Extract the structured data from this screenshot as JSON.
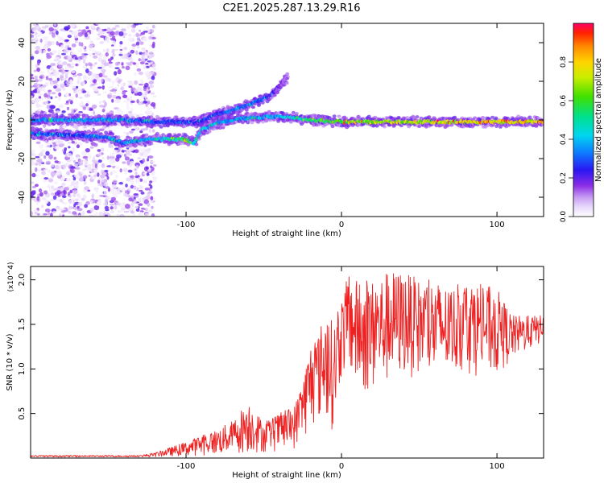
{
  "title": "C2E1.2025.287.13.29.R16",
  "chart_data": [
    {
      "type": "heatmap",
      "xlabel": "Height of straight line (km)",
      "ylabel": "Frequency (Hz)",
      "xlim": [
        -200,
        130
      ],
      "ylim": [
        -50,
        50
      ],
      "xticks": [
        -100,
        0,
        100
      ],
      "yticks": [
        -40,
        -20,
        0,
        20,
        40
      ],
      "colorbar": {
        "label": "Normalized spectral amplitude",
        "range": [
          0,
          1
        ],
        "ticks": [
          "0.0",
          "0.2",
          "0.4",
          "0.6",
          "0.8"
        ],
        "tick_values": [
          0.0,
          0.2,
          0.4,
          0.6,
          0.8
        ]
      },
      "noise_region": {
        "x_from": -200,
        "x_to": -120,
        "freq_from": -50,
        "freq_to": 50
      },
      "tracks": [
        {
          "name": "main echo trace",
          "points": [
            [
              -200,
              0
            ],
            [
              -180,
              0
            ],
            [
              -160,
              0
            ],
            [
              -140,
              0
            ],
            [
              -120,
              -1
            ],
            [
              -100,
              -1
            ],
            [
              -80,
              0
            ],
            [
              -60,
              1
            ],
            [
              -40,
              2
            ],
            [
              -20,
              0
            ],
            [
              0,
              -1
            ],
            [
              20,
              -1
            ],
            [
              40,
              -1
            ],
            [
              60,
              -1
            ],
            [
              80,
              -1
            ],
            [
              100,
              -1
            ],
            [
              130,
              -1
            ]
          ],
          "amplitude": [
            0.35,
            0.4,
            0.4,
            0.35,
            0.3,
            0.3,
            0.35,
            0.4,
            0.4,
            0.6,
            0.7,
            0.75,
            0.8,
            0.8,
            0.85,
            0.85,
            0.85
          ]
        },
        {
          "name": "lower branch",
          "points": [
            [
              -200,
              -7
            ],
            [
              -170,
              -8
            ],
            [
              -150,
              -9
            ],
            [
              -140,
              -12
            ],
            [
              -125,
              -10
            ],
            [
              -110,
              -10
            ],
            [
              -100,
              -10
            ],
            [
              -95,
              -12
            ],
            [
              -90,
              -5
            ],
            [
              -80,
              -2
            ],
            [
              -70,
              0
            ]
          ],
          "amplitude": [
            0.3,
            0.3,
            0.35,
            0.35,
            0.4,
            0.5,
            0.7,
            0.5,
            0.45,
            0.4,
            0.4
          ]
        },
        {
          "name": "rising branch",
          "points": [
            [
              -95,
              -2
            ],
            [
              -80,
              3
            ],
            [
              -70,
              5
            ],
            [
              -60,
              8
            ],
            [
              -50,
              11
            ],
            [
              -45,
              13
            ],
            [
              -40,
              18
            ],
            [
              -35,
              22
            ]
          ],
          "amplitude": [
            0.25,
            0.3,
            0.35,
            0.35,
            0.3,
            0.25,
            0.2,
            0.15
          ]
        }
      ]
    },
    {
      "type": "line",
      "xlabel": "Height of straight line (km)",
      "ylabel": "SNR (10 * v/v)",
      "y_multiplier": "(x10^4)",
      "xlim": [
        -200,
        130
      ],
      "ylim": [
        0,
        21500
      ],
      "xticks": [
        -100,
        0,
        100
      ],
      "yticks": [
        0.5,
        1.0,
        1.5,
        2.0
      ],
      "ytick_labels": [
        "0.5",
        "1.0",
        "1.5",
        "2.0"
      ],
      "color": "#ee2222",
      "envelope": {
        "x": [
          -200,
          -160,
          -130,
          -120,
          -110,
          -100,
          -90,
          -80,
          -70,
          -60,
          -50,
          -40,
          -30,
          -25,
          -20,
          -15,
          -10,
          -5,
          0,
          5,
          10,
          20,
          30,
          40,
          50,
          60,
          70,
          80,
          90,
          100,
          110,
          120,
          130
        ],
        "upper": [
          300,
          300,
          300,
          600,
          1200,
          1800,
          2600,
          3200,
          4200,
          6500,
          4000,
          5000,
          6000,
          9000,
          13000,
          14000,
          17000,
          15000,
          18000,
          21000,
          20000,
          20000,
          21000,
          21000,
          20000,
          20000,
          19000,
          20000,
          19500,
          19000,
          16000,
          16000,
          16000
        ],
        "lower": [
          100,
          100,
          100,
          100,
          200,
          200,
          300,
          300,
          400,
          500,
          600,
          700,
          1000,
          2000,
          3000,
          4000,
          4000,
          3000,
          9000,
          9000,
          7000,
          7000,
          8000,
          9000,
          9000,
          8000,
          9000,
          9500,
          9000,
          9000,
          11000,
          12000,
          13000
        ]
      }
    }
  ]
}
